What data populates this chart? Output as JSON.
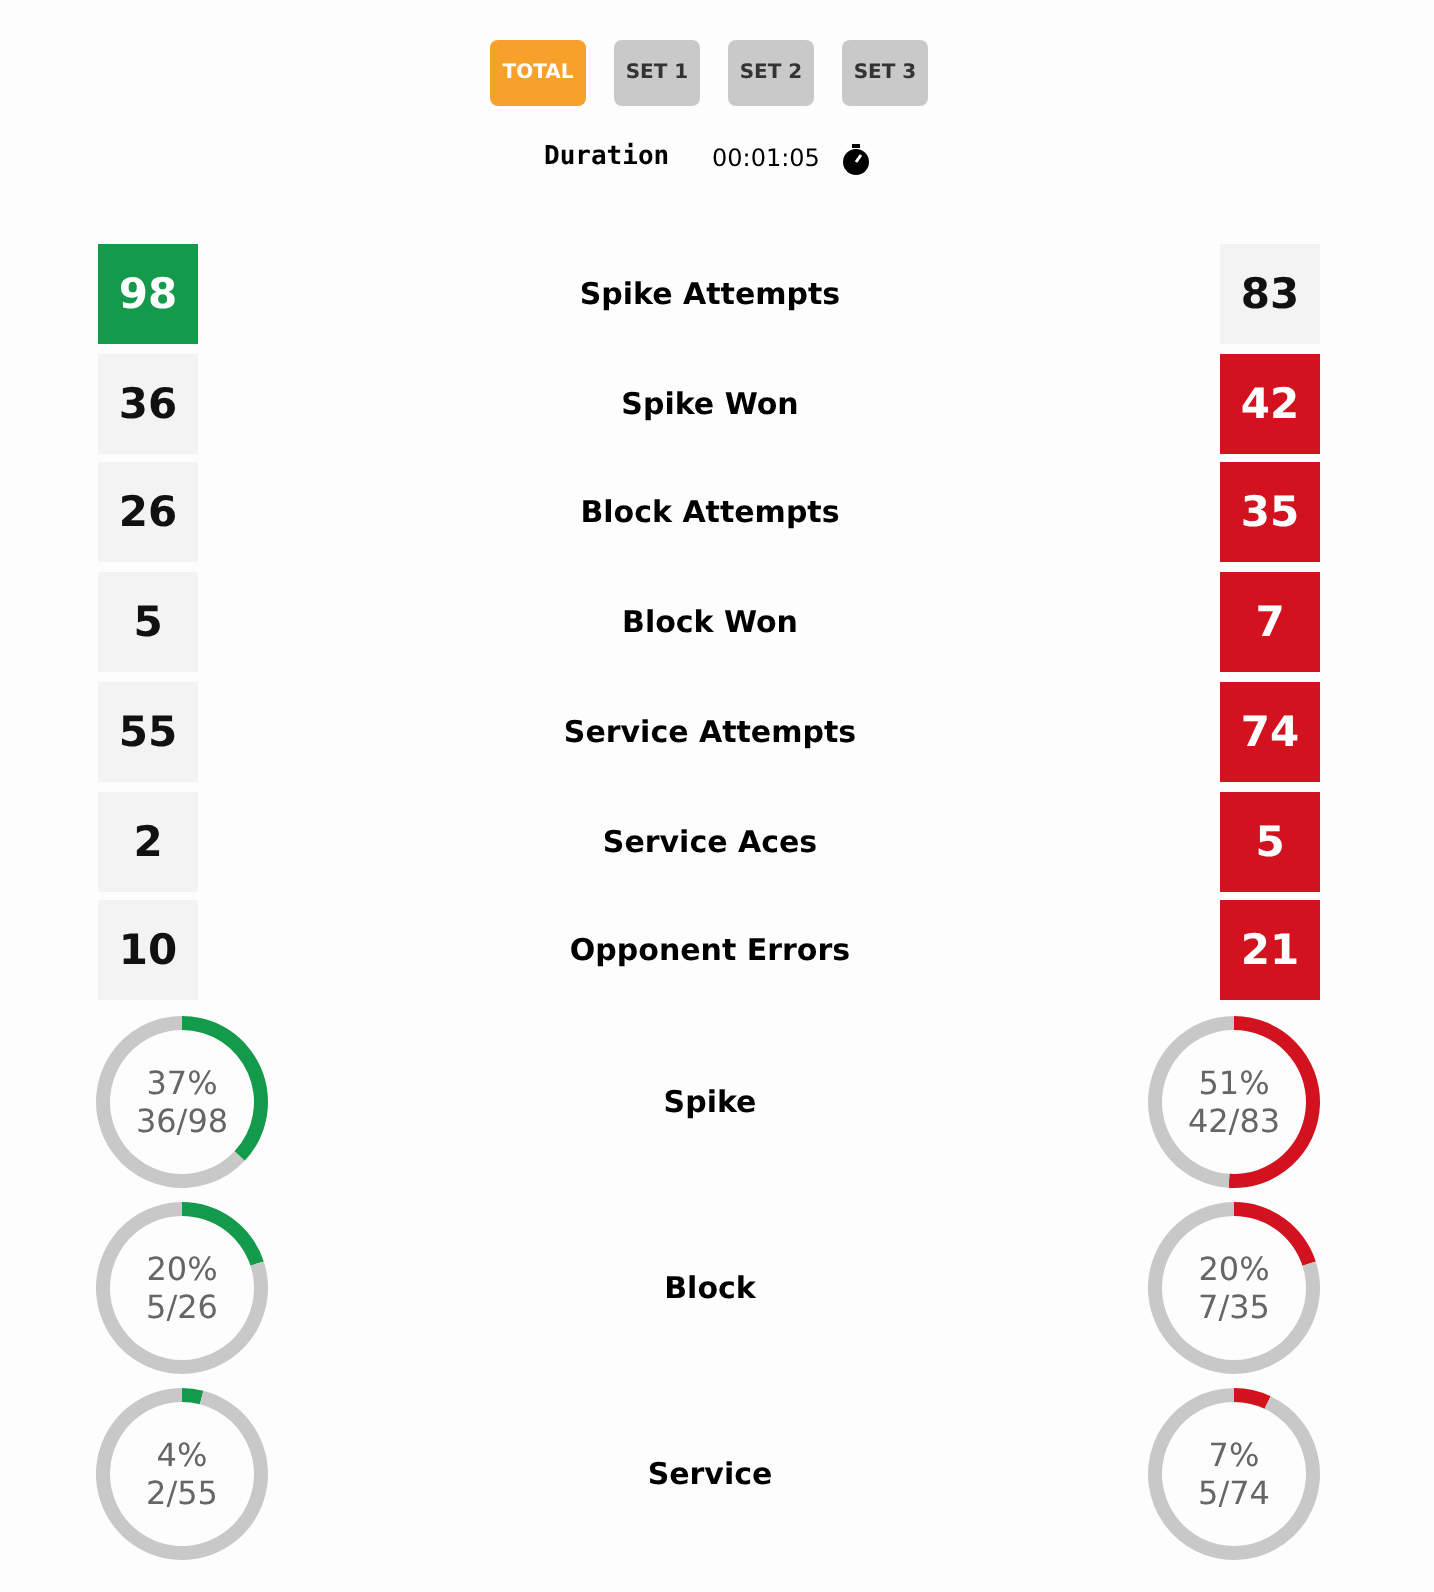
{
  "chart_data": [
    {
      "type": "other",
      "data_labels": true,
      "annotations": [
        "TOTAL",
        "SET 1",
        "SET 2",
        "SET 3",
        "Duration",
        "00:01:05"
      ],
      "categories": [
        "Spike Attempts",
        "Spike Won",
        "Block Attempts",
        "Block Won",
        "Service Attempts",
        "Service Aces",
        "Opponent Errors"
      ],
      "series": [
        {
          "colors": [
            "#139a4a",
            "#f3f3f3",
            "#f3f3f3",
            "#f3f3f3",
            "#f3f3f3",
            "#f3f3f3",
            "#f3f3f3"
          ],
          "values": [
            98,
            36,
            26,
            5,
            55,
            2,
            10
          ]
        },
        {
          "colors": [
            "#f3f3f3",
            "#d3121f",
            "#d3121f",
            "#d3121f",
            "#d3121f",
            "#d3121f",
            "#d3121f"
          ],
          "values": [
            83,
            42,
            35,
            7,
            74,
            5,
            21
          ]
        }
      ]
    },
    {
      "type": "donut",
      "title": "Spike",
      "categories": [
        null,
        null
      ],
      "values": [
        37,
        63
      ],
      "colors": [
        "#139a4a",
        "#c8c8c8"
      ],
      "annotations": [
        "37%",
        "36/98"
      ]
    },
    {
      "type": "donut",
      "categories": [
        null,
        null
      ],
      "values": [
        51,
        49
      ],
      "colors": [
        "#d3121f",
        "#c8c8c8"
      ],
      "annotations": [
        "51%",
        "42/83"
      ]
    },
    {
      "type": "donut",
      "title": "Block",
      "categories": [
        null,
        null
      ],
      "values": [
        20,
        80
      ],
      "colors": [
        "#139a4a",
        "#c8c8c8"
      ],
      "annotations": [
        "20%",
        "5/26"
      ]
    },
    {
      "type": "donut",
      "categories": [
        null,
        null
      ],
      "values": [
        20,
        80
      ],
      "colors": [
        "#d3121f",
        "#c8c8c8"
      ],
      "annotations": [
        "20%",
        "7/35"
      ]
    },
    {
      "type": "donut",
      "title": "Service",
      "categories": [
        null,
        null
      ],
      "values": [
        4,
        96
      ],
      "colors": [
        "#139a4a",
        "#c8c8c8"
      ],
      "annotations": [
        "4%",
        "2/55"
      ]
    },
    {
      "type": "donut",
      "categories": [
        null,
        null
      ],
      "values": [
        7,
        93
      ],
      "colors": [
        "#d3121f",
        "#c8c8c8"
      ],
      "annotations": [
        "7%",
        "5/74"
      ]
    }
  ]
}
